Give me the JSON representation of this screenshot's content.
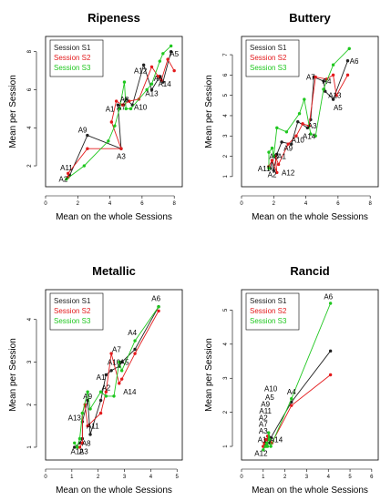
{
  "colors": {
    "S1": "#222222",
    "S2": "#e31a1c",
    "S3": "#1fc71f"
  },
  "chart_data": [
    {
      "type": "scatter",
      "title": "Ripeness",
      "xlabel": "Mean on the whole Sessions",
      "ylabel": "Mean per Session",
      "xlim": [
        0,
        8.5
      ],
      "ylim": [
        0.9,
        8.8
      ],
      "xticks": [
        0,
        2,
        4,
        6,
        8
      ],
      "yticks": [
        2,
        4,
        6,
        8
      ],
      "legend": {
        "placement": "top-left",
        "entries": [
          "Session S1",
          "Session S2",
          "Session S3"
        ]
      },
      "labels": [
        {
          "text": "A2",
          "x": 1.1,
          "y": 1.3
        },
        {
          "text": "A11",
          "x": 1.3,
          "y": 1.9
        },
        {
          "text": "A9",
          "x": 2.3,
          "y": 3.9
        },
        {
          "text": "A3",
          "x": 4.7,
          "y": 2.5
        },
        {
          "text": "A1",
          "x": 4.0,
          "y": 5.0
        },
        {
          "text": "A7",
          "x": 4.7,
          "y": 5.1
        },
        {
          "text": "A8",
          "x": 4.9,
          "y": 5.5
        },
        {
          "text": "A10",
          "x": 5.9,
          "y": 5.1
        },
        {
          "text": "A12",
          "x": 5.9,
          "y": 7.0
        },
        {
          "text": "A13",
          "x": 6.6,
          "y": 5.8
        },
        {
          "text": "A6",
          "x": 7.0,
          "y": 6.6
        },
        {
          "text": "A14",
          "x": 7.4,
          "y": 6.3
        },
        {
          "text": "A5",
          "x": 8.0,
          "y": 7.9
        }
      ],
      "series": [
        {
          "name": "Session S1",
          "points": [
            [
              1.4,
              1.4
            ],
            [
              1.5,
              1.5
            ],
            [
              2.6,
              3.6
            ],
            [
              4.7,
              2.9
            ],
            [
              4.5,
              5.2
            ],
            [
              4.8,
              5.2
            ],
            [
              5.0,
              5.5
            ],
            [
              5.4,
              5.2
            ],
            [
              6.1,
              7.3
            ],
            [
              6.6,
              6.0
            ],
            [
              7.1,
              6.7
            ],
            [
              7.3,
              6.4
            ],
            [
              7.8,
              8.0
            ]
          ]
        },
        {
          "name": "Session S2",
          "points": [
            [
              1.4,
              1.4
            ],
            [
              1.4,
              1.6
            ],
            [
              2.6,
              2.9
            ],
            [
              4.7,
              2.9
            ],
            [
              4.1,
              4.3
            ],
            [
              4.4,
              5.4
            ],
            [
              4.8,
              5.2
            ],
            [
              5.2,
              5.4
            ],
            [
              5.8,
              5.5
            ],
            [
              6.6,
              7.2
            ],
            [
              7.0,
              6.7
            ],
            [
              7.2,
              6.5
            ],
            [
              7.6,
              7.6
            ],
            [
              8.0,
              7.0
            ]
          ]
        },
        {
          "name": "Session S3",
          "points": [
            [
              1.3,
              1.3
            ],
            [
              2.4,
              2.0
            ],
            [
              3.9,
              3.3
            ],
            [
              4.3,
              4.1
            ],
            [
              4.6,
              5.0
            ],
            [
              4.9,
              6.4
            ],
            [
              5.0,
              5.0
            ],
            [
              5.3,
              5.0
            ],
            [
              6.3,
              6.0
            ],
            [
              6.6,
              6.3
            ],
            [
              7.1,
              7.5
            ],
            [
              7.3,
              7.9
            ],
            [
              7.8,
              8.3
            ]
          ]
        }
      ]
    },
    {
      "type": "scatter",
      "title": "Buttery",
      "xlabel": "Mean on the whole Sessions",
      "ylabel": "Mean per Session",
      "xlim": [
        0,
        8.5
      ],
      "ylim": [
        0.5,
        7.9
      ],
      "xticks": [
        0,
        2,
        4,
        6,
        8
      ],
      "yticks": [
        1,
        2,
        3,
        4,
        5,
        6,
        7
      ],
      "legend": {
        "placement": "top-left",
        "entries": [
          "Session S1",
          "Session S2",
          "Session S3"
        ]
      },
      "labels": [
        {
          "text": "A2",
          "x": 1.9,
          "y": 1.1
        },
        {
          "text": "A11",
          "x": 1.4,
          "y": 1.4
        },
        {
          "text": "A12",
          "x": 2.9,
          "y": 1.2
        },
        {
          "text": "A8",
          "x": 2.0,
          "y": 2.0
        },
        {
          "text": "A1",
          "x": 2.5,
          "y": 2.0
        },
        {
          "text": "A9",
          "x": 2.9,
          "y": 2.4
        },
        {
          "text": "A10",
          "x": 3.5,
          "y": 2.8
        },
        {
          "text": "A14",
          "x": 4.2,
          "y": 3.0
        },
        {
          "text": "A3",
          "x": 4.4,
          "y": 3.5
        },
        {
          "text": "A7",
          "x": 4.3,
          "y": 5.9
        },
        {
          "text": "A4",
          "x": 5.3,
          "y": 5.7
        },
        {
          "text": "A13",
          "x": 5.8,
          "y": 5.0
        },
        {
          "text": "A5",
          "x": 6.0,
          "y": 4.4
        },
        {
          "text": "A6",
          "x": 7.0,
          "y": 6.7
        }
      ],
      "series": [
        {
          "name": "Session S1",
          "points": [
            [
              1.8,
              1.4
            ],
            [
              1.9,
              1.8
            ],
            [
              2.0,
              1.3
            ],
            [
              2.2,
              2.1
            ],
            [
              2.5,
              2.7
            ],
            [
              3.1,
              2.6
            ],
            [
              3.5,
              3.7
            ],
            [
              4.1,
              3.4
            ],
            [
              4.3,
              3.8
            ],
            [
              4.5,
              5.9
            ],
            [
              5.1,
              5.7
            ],
            [
              5.2,
              5.2
            ],
            [
              5.7,
              4.8
            ],
            [
              6.6,
              6.7
            ]
          ]
        },
        {
          "name": "Session S2",
          "points": [
            [
              1.7,
              1.5
            ],
            [
              1.9,
              1.8
            ],
            [
              2.2,
              1.2
            ],
            [
              2.1,
              2.0
            ],
            [
              2.3,
              1.6
            ],
            [
              2.9,
              2.6
            ],
            [
              3.4,
              3.0
            ],
            [
              3.8,
              3.6
            ],
            [
              4.2,
              3.5
            ],
            [
              4.6,
              5.9
            ],
            [
              5.3,
              5.8
            ],
            [
              5.7,
              6.0
            ],
            [
              5.9,
              5.0
            ],
            [
              6.6,
              6.0
            ]
          ]
        },
        {
          "name": "Session S3",
          "points": [
            [
              1.7,
              1.4
            ],
            [
              1.7,
              2.2
            ],
            [
              1.9,
              2.4
            ],
            [
              2.0,
              2.0
            ],
            [
              2.2,
              3.4
            ],
            [
              2.8,
              3.2
            ],
            [
              3.6,
              4.1
            ],
            [
              3.9,
              4.8
            ],
            [
              4.3,
              3.1
            ],
            [
              4.6,
              3.0
            ],
            [
              5.1,
              5.3
            ],
            [
              5.7,
              6.5
            ],
            [
              6.7,
              7.3
            ]
          ]
        }
      ]
    },
    {
      "type": "scatter",
      "title": "Metallic",
      "xlabel": "Mean on the whole Sessions",
      "ylabel": "Mean per Session",
      "xlim": [
        0,
        5.2
      ],
      "ylim": [
        0.7,
        4.7
      ],
      "xticks": [
        0,
        1,
        2,
        3,
        4,
        5
      ],
      "yticks": [
        1,
        2,
        3,
        4
      ],
      "legend": {
        "placement": "top-left",
        "entries": [
          "Session S1",
          "Session S2",
          "Session S3"
        ]
      },
      "labels": [
        {
          "text": "A12",
          "x": 1.2,
          "y": 0.9
        },
        {
          "text": "A3",
          "x": 1.45,
          "y": 0.9
        },
        {
          "text": "A8",
          "x": 1.55,
          "y": 1.1
        },
        {
          "text": "A13",
          "x": 1.1,
          "y": 1.7
        },
        {
          "text": "A11",
          "x": 1.8,
          "y": 1.5
        },
        {
          "text": "A9",
          "x": 1.6,
          "y": 2.2
        },
        {
          "text": "A1",
          "x": 2.1,
          "y": 2.65
        },
        {
          "text": "A2",
          "x": 2.3,
          "y": 2.4
        },
        {
          "text": "A10",
          "x": 2.6,
          "y": 3.0
        },
        {
          "text": "A7",
          "x": 2.7,
          "y": 3.3
        },
        {
          "text": "A5",
          "x": 3.0,
          "y": 3.0
        },
        {
          "text": "A14",
          "x": 3.2,
          "y": 2.3
        },
        {
          "text": "A4",
          "x": 3.3,
          "y": 3.7
        },
        {
          "text": "A6",
          "x": 4.2,
          "y": 4.5
        }
      ],
      "series": [
        {
          "name": "Session S1",
          "points": [
            [
              1.1,
              1.0
            ],
            [
              1.3,
              1.1
            ],
            [
              1.4,
              1.2
            ],
            [
              1.4,
              1.6
            ],
            [
              1.6,
              2.1
            ],
            [
              1.7,
              1.3
            ],
            [
              2.1,
              2.1
            ],
            [
              2.3,
              2.7
            ],
            [
              2.5,
              2.8
            ],
            [
              2.8,
              2.9
            ],
            [
              2.9,
              3.0
            ],
            [
              3.4,
              3.3
            ],
            [
              4.3,
              4.3
            ]
          ]
        },
        {
          "name": "Session S2",
          "points": [
            [
              1.2,
              1.0
            ],
            [
              1.3,
              1.0
            ],
            [
              1.4,
              1.1
            ],
            [
              1.4,
              1.8
            ],
            [
              1.5,
              2.0
            ],
            [
              1.6,
              1.5
            ],
            [
              2.1,
              1.8
            ],
            [
              2.3,
              2.3
            ],
            [
              2.5,
              3.2
            ],
            [
              2.8,
              2.5
            ],
            [
              2.9,
              2.6
            ],
            [
              3.4,
              3.2
            ],
            [
              4.3,
              4.2
            ]
          ]
        },
        {
          "name": "Session S3",
          "points": [
            [
              1.1,
              1.1
            ],
            [
              1.2,
              1.0
            ],
            [
              1.3,
              1.2
            ],
            [
              1.4,
              1.8
            ],
            [
              1.6,
              2.3
            ],
            [
              1.7,
              1.9
            ],
            [
              2.1,
              2.3
            ],
            [
              2.3,
              2.2
            ],
            [
              2.6,
              2.2
            ],
            [
              2.8,
              3.0
            ],
            [
              2.9,
              2.8
            ],
            [
              3.4,
              3.5
            ],
            [
              4.3,
              4.3
            ]
          ]
        }
      ]
    },
    {
      "type": "scatter",
      "title": "Rancid",
      "xlabel": "Mean on the whole Sessions",
      "ylabel": "Mean per Session",
      "xlim": [
        0,
        6.3
      ],
      "ylim": [
        0.6,
        5.6
      ],
      "xticks": [
        0,
        1,
        2,
        3,
        4,
        5,
        6
      ],
      "yticks": [
        1,
        2,
        3,
        4,
        5
      ],
      "legend": {
        "placement": "top-left",
        "entries": [
          "Session S1",
          "Session S2",
          "Session S3"
        ]
      },
      "labels": [
        {
          "text": "A12",
          "x": 0.9,
          "y": 0.8
        },
        {
          "text": "A1",
          "x": 0.95,
          "y": 1.2
        },
        {
          "text": "A14",
          "x": 1.6,
          "y": 1.2
        },
        {
          "text": "A3",
          "x": 1.0,
          "y": 1.45
        },
        {
          "text": "A7",
          "x": 1.0,
          "y": 1.65
        },
        {
          "text": "A2",
          "x": 1.0,
          "y": 1.85
        },
        {
          "text": "A11",
          "x": 1.1,
          "y": 2.05
        },
        {
          "text": "A9",
          "x": 1.1,
          "y": 2.25
        },
        {
          "text": "A5",
          "x": 1.3,
          "y": 2.45
        },
        {
          "text": "A10",
          "x": 1.35,
          "y": 2.7
        },
        {
          "text": "A4",
          "x": 2.3,
          "y": 2.6
        },
        {
          "text": "A6",
          "x": 4.0,
          "y": 5.4
        }
      ],
      "series": [
        {
          "name": "Session S1",
          "points": [
            [
              1.0,
              1.0
            ],
            [
              1.1,
              1.1
            ],
            [
              1.15,
              1.05
            ],
            [
              1.2,
              1.2
            ],
            [
              1.25,
              1.3
            ],
            [
              1.3,
              1.1
            ],
            [
              1.35,
              1.25
            ],
            [
              2.3,
              2.3
            ],
            [
              4.1,
              3.8
            ]
          ]
        },
        {
          "name": "Session S2",
          "points": [
            [
              1.0,
              1.0
            ],
            [
              1.05,
              1.1
            ],
            [
              1.1,
              1.2
            ],
            [
              1.15,
              1.0
            ],
            [
              1.2,
              1.3
            ],
            [
              1.3,
              1.2
            ],
            [
              1.4,
              1.1
            ],
            [
              2.3,
              2.2
            ],
            [
              4.1,
              3.1
            ]
          ]
        },
        {
          "name": "Session S3",
          "points": [
            [
              1.0,
              0.9
            ],
            [
              1.1,
              1.0
            ],
            [
              1.15,
              1.1
            ],
            [
              1.2,
              1.0
            ],
            [
              1.25,
              1.4
            ],
            [
              1.3,
              1.2
            ],
            [
              1.35,
              1.0
            ],
            [
              2.3,
              2.4
            ],
            [
              4.1,
              5.2
            ]
          ]
        }
      ]
    }
  ]
}
